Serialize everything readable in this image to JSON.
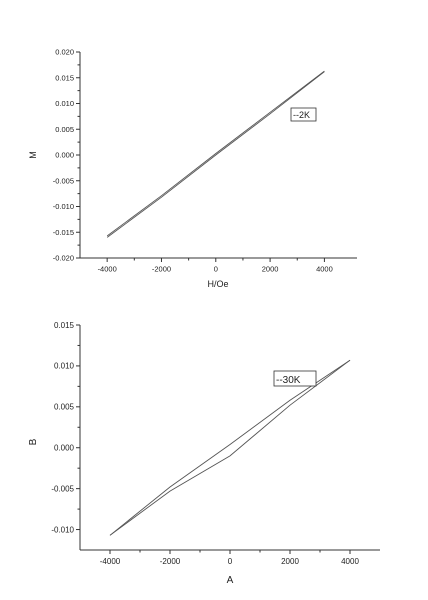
{
  "chart_data": [
    {
      "type": "line",
      "xlabel": "H/Oe",
      "ylabel": "M",
      "xlim": [
        -5000,
        5200
      ],
      "ylim": [
        -0.02,
        0.02
      ],
      "x_ticks": [
        -4000,
        -2000,
        0,
        2000,
        4000
      ],
      "x_tick_labels": [
        "-4000",
        "-2000",
        "0",
        "2000",
        "4000"
      ],
      "y_ticks": [
        -0.02,
        -0.015,
        -0.01,
        -0.005,
        0.0,
        0.005,
        0.01,
        0.015,
        0.02
      ],
      "y_tick_labels": [
        "-0.020",
        "-0.015",
        "-0.010",
        "-0.005",
        "0.000",
        "0.005",
        "0.010",
        "0.015",
        "0.020"
      ],
      "grid": false,
      "legend": {
        "text": "--2K",
        "placement": "right-middle"
      },
      "series": [
        {
          "x": [
            -4000,
            -2000,
            0,
            2000,
            4000
          ],
          "y": [
            -0.0157,
            -0.0079,
            0.0003,
            0.0083,
            0.0163
          ]
        },
        {
          "x": [
            -4000,
            -2000,
            0,
            2000,
            4000
          ],
          "y": [
            -0.016,
            -0.0082,
            0.0,
            0.008,
            0.0162
          ]
        }
      ],
      "line_color": "#555555"
    },
    {
      "type": "line",
      "xlabel": "A",
      "ylabel": "B",
      "xlim": [
        -5000,
        5000
      ],
      "ylim": [
        -0.0125,
        0.015
      ],
      "x_ticks": [
        -4000,
        -2000,
        0,
        2000,
        4000
      ],
      "x_tick_labels": [
        "-4000",
        "-2000",
        "0",
        "2000",
        "4000"
      ],
      "y_ticks": [
        -0.01,
        -0.005,
        0.0,
        0.005,
        0.01,
        0.015
      ],
      "y_tick_labels": [
        "-0.010",
        "-0.005",
        "0.000",
        "0.005",
        "0.010",
        "0.015"
      ],
      "grid": false,
      "legend": {
        "text": "--30K",
        "placement": "top-right"
      },
      "series": [
        {
          "x": [
            -4000,
            -2000,
            0,
            2000,
            4000
          ],
          "y": [
            -0.0107,
            -0.0048,
            0.0004,
            0.0058,
            0.0107
          ]
        },
        {
          "x": [
            -4000,
            -2000,
            0,
            2000,
            4000
          ],
          "y": [
            -0.0107,
            -0.0053,
            -0.001,
            0.0052,
            0.0107
          ]
        }
      ],
      "line_color": "#555555"
    }
  ]
}
